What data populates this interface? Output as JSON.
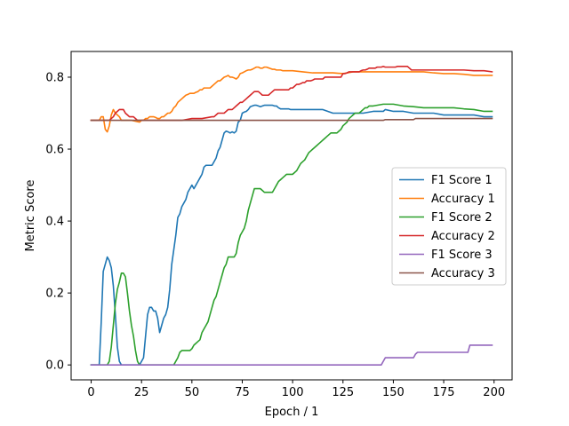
{
  "chart_data": {
    "type": "line",
    "title": "",
    "xlabel": "Epoch / 1",
    "ylabel": "Metric Score",
    "xlim": [
      -9.95,
      208.95
    ],
    "ylim": [
      -0.0415,
      0.8715
    ],
    "xticks": [
      0,
      25,
      50,
      75,
      100,
      125,
      150,
      175,
      200
    ],
    "yticks": [
      0.0,
      0.2,
      0.4,
      0.6,
      0.8
    ],
    "xtick_labels": [
      "0",
      "25",
      "50",
      "75",
      "100",
      "125",
      "150",
      "175",
      "200"
    ],
    "ytick_labels": [
      "0.0",
      "0.2",
      "0.4",
      "0.6",
      "0.8"
    ],
    "grid": false,
    "legend_position": "center-right",
    "series": [
      {
        "name": "F1 Score 1",
        "color": "#1f77b4",
        "x": [
          0,
          4,
          5,
          6,
          7,
          8,
          9,
          10,
          11,
          12,
          13,
          14,
          15,
          20,
          24,
          26,
          27,
          28,
          29,
          30,
          31,
          32,
          33,
          34,
          35,
          36,
          37,
          38,
          39,
          40,
          41,
          42,
          43,
          44,
          45,
          46,
          47,
          48,
          49,
          50,
          51,
          52,
          53,
          54,
          55,
          56,
          57,
          58,
          59,
          60,
          61,
          62,
          63,
          64,
          65,
          66,
          67,
          68,
          69,
          70,
          71,
          72,
          73,
          74,
          75,
          76,
          77,
          78,
          79,
          80,
          81,
          82,
          83,
          84,
          85,
          86,
          87,
          88,
          89,
          90,
          91,
          92,
          93,
          94,
          95,
          96,
          97,
          98,
          99,
          100,
          105,
          110,
          115,
          120,
          125,
          130,
          135,
          140,
          145,
          146,
          150,
          155,
          160,
          165,
          170,
          175,
          180,
          185,
          190,
          195,
          199
        ],
        "y": [
          0,
          0,
          0.12,
          0.26,
          0.28,
          0.3,
          0.29,
          0.27,
          0.22,
          0.14,
          0.05,
          0.01,
          0,
          0,
          0,
          0.02,
          0.08,
          0.14,
          0.16,
          0.16,
          0.15,
          0.15,
          0.13,
          0.09,
          0.11,
          0.13,
          0.14,
          0.16,
          0.21,
          0.28,
          0.32,
          0.36,
          0.41,
          0.42,
          0.44,
          0.45,
          0.46,
          0.48,
          0.49,
          0.5,
          0.49,
          0.5,
          0.51,
          0.52,
          0.53,
          0.55,
          0.555,
          0.555,
          0.555,
          0.555,
          0.565,
          0.575,
          0.595,
          0.605,
          0.625,
          0.645,
          0.65,
          0.648,
          0.645,
          0.648,
          0.645,
          0.65,
          0.675,
          0.68,
          0.7,
          0.703,
          0.705,
          0.71,
          0.718,
          0.72,
          0.722,
          0.722,
          0.72,
          0.718,
          0.72,
          0.722,
          0.722,
          0.722,
          0.722,
          0.722,
          0.72,
          0.72,
          0.715,
          0.712,
          0.712,
          0.712,
          0.712,
          0.712,
          0.71,
          0.71,
          0.71,
          0.71,
          0.71,
          0.7,
          0.7,
          0.7,
          0.7,
          0.705,
          0.705,
          0.71,
          0.705,
          0.705,
          0.7,
          0.7,
          0.7,
          0.695,
          0.695,
          0.695,
          0.695,
          0.69,
          0.69
        ]
      },
      {
        "name": "Accuracy 1",
        "color": "#ff7f0e",
        "x": [
          0,
          4,
          5,
          6,
          7,
          8,
          9,
          10,
          11,
          12,
          13,
          14,
          15,
          20,
          24,
          25,
          26,
          27,
          28,
          29,
          30,
          31,
          32,
          33,
          34,
          35,
          36,
          37,
          38,
          39,
          40,
          41,
          42,
          43,
          44,
          45,
          46,
          47,
          48,
          49,
          50,
          51,
          52,
          53,
          54,
          55,
          56,
          57,
          58,
          59,
          60,
          61,
          62,
          63,
          64,
          65,
          66,
          67,
          68,
          69,
          70,
          71,
          72,
          73,
          74,
          75,
          76,
          77,
          78,
          79,
          80,
          81,
          82,
          83,
          84,
          85,
          86,
          87,
          88,
          89,
          90,
          91,
          92,
          93,
          94,
          95,
          96,
          97,
          98,
          99,
          100,
          105,
          110,
          115,
          120,
          125,
          130,
          135,
          140,
          145,
          150,
          155,
          160,
          165,
          170,
          175,
          180,
          185,
          190,
          195,
          199
        ],
        "y": [
          0.68,
          0.68,
          0.69,
          0.69,
          0.655,
          0.648,
          0.665,
          0.695,
          0.71,
          0.7,
          0.695,
          0.69,
          0.68,
          0.68,
          0.675,
          0.68,
          0.68,
          0.685,
          0.685,
          0.69,
          0.69,
          0.69,
          0.688,
          0.685,
          0.685,
          0.69,
          0.69,
          0.695,
          0.7,
          0.7,
          0.705,
          0.715,
          0.72,
          0.73,
          0.735,
          0.74,
          0.745,
          0.75,
          0.752,
          0.755,
          0.755,
          0.755,
          0.758,
          0.76,
          0.765,
          0.765,
          0.77,
          0.77,
          0.77,
          0.77,
          0.775,
          0.78,
          0.785,
          0.79,
          0.79,
          0.795,
          0.8,
          0.802,
          0.805,
          0.8,
          0.8,
          0.798,
          0.795,
          0.8,
          0.81,
          0.812,
          0.815,
          0.818,
          0.82,
          0.82,
          0.822,
          0.825,
          0.828,
          0.828,
          0.825,
          0.825,
          0.828,
          0.828,
          0.826,
          0.824,
          0.822,
          0.822,
          0.82,
          0.82,
          0.82,
          0.818,
          0.818,
          0.818,
          0.818,
          0.818,
          0.818,
          0.815,
          0.812,
          0.812,
          0.812,
          0.81,
          0.815,
          0.815,
          0.815,
          0.815,
          0.815,
          0.815,
          0.815,
          0.815,
          0.812,
          0.81,
          0.81,
          0.808,
          0.805,
          0.805,
          0.805
        ]
      },
      {
        "name": "F1 Score 2",
        "color": "#2ca02c",
        "x": [
          0,
          8,
          9,
          10,
          11,
          12,
          13,
          14,
          15,
          16,
          17,
          18,
          19,
          20,
          21,
          22,
          23,
          24,
          25,
          41,
          42,
          43,
          44,
          45,
          46,
          47,
          48,
          49,
          50,
          51,
          52,
          53,
          54,
          55,
          56,
          57,
          58,
          59,
          60,
          61,
          62,
          63,
          64,
          65,
          66,
          67,
          68,
          69,
          70,
          71,
          72,
          73,
          74,
          75,
          76,
          77,
          78,
          79,
          80,
          81,
          82,
          83,
          84,
          85,
          86,
          87,
          88,
          89,
          90,
          91,
          92,
          93,
          94,
          95,
          96,
          97,
          98,
          99,
          100,
          101,
          102,
          103,
          104,
          105,
          106,
          107,
          108,
          109,
          110,
          111,
          112,
          113,
          114,
          115,
          116,
          117,
          118,
          119,
          120,
          121,
          122,
          123,
          124,
          125,
          126,
          127,
          128,
          129,
          130,
          131,
          132,
          133,
          134,
          135,
          136,
          137,
          138,
          139,
          140,
          145,
          150,
          155,
          160,
          165,
          170,
          175,
          180,
          185,
          190,
          195,
          199
        ],
        "y": [
          0,
          0,
          0.01,
          0.05,
          0.11,
          0.17,
          0.21,
          0.23,
          0.255,
          0.255,
          0.245,
          0.2,
          0.15,
          0.11,
          0.08,
          0.04,
          0.01,
          0,
          0,
          0,
          0.01,
          0.02,
          0.035,
          0.04,
          0.04,
          0.04,
          0.04,
          0.04,
          0.045,
          0.055,
          0.06,
          0.065,
          0.07,
          0.09,
          0.1,
          0.11,
          0.12,
          0.14,
          0.16,
          0.18,
          0.19,
          0.21,
          0.23,
          0.25,
          0.27,
          0.28,
          0.3,
          0.3,
          0.3,
          0.3,
          0.31,
          0.34,
          0.36,
          0.37,
          0.38,
          0.4,
          0.43,
          0.45,
          0.47,
          0.49,
          0.49,
          0.49,
          0.49,
          0.485,
          0.48,
          0.48,
          0.48,
          0.48,
          0.48,
          0.49,
          0.5,
          0.51,
          0.515,
          0.52,
          0.525,
          0.53,
          0.53,
          0.53,
          0.53,
          0.535,
          0.54,
          0.55,
          0.56,
          0.565,
          0.57,
          0.58,
          0.59,
          0.595,
          0.6,
          0.605,
          0.61,
          0.615,
          0.62,
          0.625,
          0.63,
          0.635,
          0.64,
          0.645,
          0.645,
          0.645,
          0.645,
          0.65,
          0.655,
          0.665,
          0.67,
          0.675,
          0.685,
          0.69,
          0.695,
          0.7,
          0.7,
          0.7,
          0.705,
          0.71,
          0.715,
          0.715,
          0.72,
          0.72,
          0.72,
          0.725,
          0.725,
          0.72,
          0.718,
          0.715,
          0.715,
          0.715,
          0.715,
          0.712,
          0.71,
          0.705,
          0.705
        ]
      },
      {
        "name": "Accuracy 2",
        "color": "#d62728",
        "x": [
          0,
          9,
          10,
          11,
          12,
          13,
          14,
          15,
          16,
          17,
          18,
          19,
          20,
          21,
          22,
          23,
          24,
          25,
          40,
          45,
          50,
          55,
          60,
          61,
          62,
          63,
          64,
          65,
          66,
          67,
          68,
          69,
          70,
          71,
          72,
          73,
          74,
          75,
          76,
          77,
          78,
          79,
          80,
          81,
          82,
          83,
          84,
          85,
          86,
          87,
          88,
          89,
          90,
          91,
          92,
          93,
          94,
          95,
          96,
          97,
          98,
          99,
          100,
          101,
          102,
          103,
          104,
          105,
          106,
          107,
          108,
          109,
          110,
          111,
          112,
          113,
          114,
          115,
          116,
          117,
          118,
          119,
          120,
          121,
          122,
          123,
          124,
          125,
          126,
          127,
          128,
          129,
          130,
          131,
          132,
          133,
          134,
          135,
          136,
          137,
          138,
          139,
          140,
          141,
          142,
          143,
          144,
          145,
          146,
          147,
          148,
          149,
          150,
          151,
          152,
          153,
          154,
          155,
          156,
          157,
          158,
          159,
          160,
          165,
          170,
          175,
          180,
          185,
          190,
          195,
          199
        ],
        "y": [
          0.68,
          0.68,
          0.685,
          0.69,
          0.7,
          0.705,
          0.71,
          0.71,
          0.71,
          0.7,
          0.695,
          0.69,
          0.69,
          0.69,
          0.685,
          0.68,
          0.68,
          0.68,
          0.68,
          0.68,
          0.685,
          0.685,
          0.69,
          0.69,
          0.695,
          0.7,
          0.7,
          0.7,
          0.7,
          0.705,
          0.71,
          0.71,
          0.71,
          0.715,
          0.72,
          0.725,
          0.73,
          0.73,
          0.735,
          0.74,
          0.745,
          0.75,
          0.755,
          0.76,
          0.76,
          0.76,
          0.755,
          0.75,
          0.75,
          0.75,
          0.75,
          0.755,
          0.76,
          0.765,
          0.765,
          0.765,
          0.765,
          0.765,
          0.765,
          0.765,
          0.765,
          0.77,
          0.77,
          0.775,
          0.78,
          0.78,
          0.782,
          0.785,
          0.785,
          0.79,
          0.79,
          0.79,
          0.792,
          0.795,
          0.795,
          0.795,
          0.795,
          0.795,
          0.8,
          0.8,
          0.8,
          0.8,
          0.8,
          0.8,
          0.8,
          0.8,
          0.8,
          0.81,
          0.81,
          0.812,
          0.815,
          0.815,
          0.815,
          0.815,
          0.815,
          0.815,
          0.818,
          0.82,
          0.82,
          0.822,
          0.825,
          0.825,
          0.825,
          0.825,
          0.828,
          0.828,
          0.828,
          0.83,
          0.828,
          0.828,
          0.828,
          0.828,
          0.828,
          0.828,
          0.83,
          0.83,
          0.83,
          0.83,
          0.83,
          0.83,
          0.825,
          0.82,
          0.82,
          0.82,
          0.82,
          0.82,
          0.82,
          0.82,
          0.818,
          0.818,
          0.815
        ]
      },
      {
        "name": "F1 Score 3",
        "color": "#9467bd",
        "x": [
          0,
          144,
          145,
          146,
          160,
          161,
          162,
          175,
          187,
          188,
          190,
          195,
          199
        ],
        "y": [
          0,
          0,
          0.01,
          0.02,
          0.02,
          0.03,
          0.035,
          0.035,
          0.035,
          0.055,
          0.055,
          0.055,
          0.055
        ]
      },
      {
        "name": "Accuracy 3",
        "color": "#8c564b",
        "x": [
          0,
          50,
          100,
          145,
          146,
          150,
          160,
          161,
          162,
          170,
          180,
          190,
          195,
          199
        ],
        "y": [
          0.68,
          0.68,
          0.68,
          0.68,
          0.682,
          0.682,
          0.682,
          0.685,
          0.685,
          0.685,
          0.685,
          0.685,
          0.685,
          0.685
        ]
      }
    ]
  }
}
